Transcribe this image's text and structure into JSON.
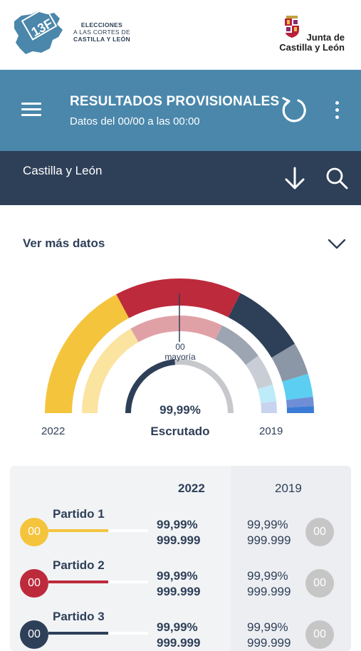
{
  "brand": {
    "logo_mark": "13F",
    "elections_line1": "ELECCIONES",
    "elections_line2": "A LAS CORTES DE",
    "elections_line3": "CASTILLA Y LEÓN",
    "junta_line1": "Junta de",
    "junta_line2": "Castilla y León"
  },
  "appbar": {
    "title": "RESULTADOS PROVISIONALES",
    "subtitle": "Datos del 00/00 a las 00:00",
    "icons": [
      "menu-icon",
      "refresh-icon",
      "more-vertical-icon"
    ]
  },
  "region": {
    "name": "Castilla y León",
    "icons": [
      "arrow-down-icon",
      "search-icon"
    ]
  },
  "more_data": {
    "label": "Ver más datos",
    "icon": "chevron-down-icon"
  },
  "hemicycle": {
    "majority_value": "00",
    "majority_label": "mayoría",
    "scrutinized_pct": "99,99%",
    "scrutinized_label": "Escrutado",
    "year_left": "2022",
    "year_right": "2019",
    "colors": {
      "party1": "#f4c43c",
      "party2": "#bd2a3c",
      "party3": "#2e3f58",
      "party4": "#8b96a6",
      "party5": "#5ccef2",
      "party6": "#6f8ed6",
      "party7": "#3a7bd5",
      "gauge_track": "#c6c8cc"
    }
  },
  "table": {
    "header_2022": "2022",
    "header_2019": "2019",
    "rows": [
      {
        "name": "Partido 1",
        "seats_2022": "00",
        "pct_2022": "99,99%",
        "votes_2022": "999.999",
        "pct_2019": "99,99%",
        "votes_2019": "999.999",
        "seats_2019": "00",
        "color": "#f4c43c",
        "bar_fill": 0.6
      },
      {
        "name": "Partido 2",
        "seats_2022": "00",
        "pct_2022": "99,99%",
        "votes_2022": "999.999",
        "pct_2019": "99,99%",
        "votes_2019": "999.999",
        "seats_2019": "00",
        "color": "#bd2a3c",
        "bar_fill": 0.6
      },
      {
        "name": "Partido 3",
        "seats_2022": "00",
        "pct_2022": "99,99%",
        "votes_2022": "999.999",
        "pct_2019": "99,99%",
        "votes_2019": "999.999",
        "seats_2019": "00",
        "color": "#2e3f58",
        "bar_fill": 0.6
      }
    ],
    "badge_2019_color": "#c6c6c6"
  }
}
